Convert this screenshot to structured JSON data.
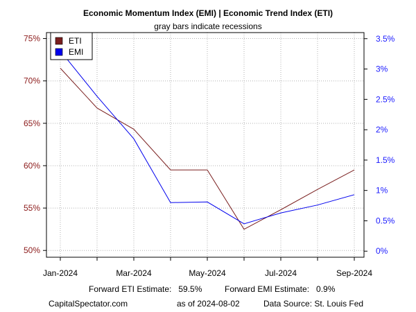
{
  "chart_data": {
    "type": "line",
    "title": "Economic Momentum Index (EMI) | Economic Trend Index (ETI)",
    "subtitle": "gray bars indicate recessions",
    "x_ticks": [
      "Jan-2024",
      "Mar-2024",
      "May-2024",
      "Jul-2024",
      "Sep-2024"
    ],
    "x_range": [
      0,
      8
    ],
    "grid": true,
    "legend_position": "top-left",
    "left_axis": {
      "ylim": [
        49.2,
        75.7
      ],
      "ticks": [
        50,
        55,
        60,
        65,
        70,
        75
      ],
      "tick_labels": [
        "50%",
        "55%",
        "60%",
        "65%",
        "70%",
        "75%"
      ],
      "color": "#8b1a1a"
    },
    "right_axis": {
      "ylim": [
        -0.1,
        3.6
      ],
      "ticks": [
        0,
        0.5,
        1,
        1.5,
        2,
        2.5,
        3,
        3.5
      ],
      "tick_labels": [
        "0%",
        "0.5%",
        "1%",
        "1.5%",
        "2%",
        "2.5%",
        "3%",
        "3.5%"
      ],
      "color": "#1a1aff"
    },
    "series": [
      {
        "name": "ETI",
        "axis": "left",
        "color": "#7a1f1f",
        "x": [
          0,
          1,
          2,
          3,
          4,
          5,
          6,
          7,
          8
        ],
        "values": [
          71.5,
          66.8,
          64.3,
          59.5,
          59.5,
          52.5,
          54.8,
          57.2,
          59.5
        ]
      },
      {
        "name": "EMI",
        "axis": "right",
        "color": "#0000ee",
        "x": [
          0,
          1,
          2,
          3,
          4,
          5,
          6,
          7,
          8
        ],
        "values": [
          3.3,
          2.55,
          1.85,
          0.8,
          0.81,
          0.45,
          0.63,
          0.76,
          0.93
        ]
      }
    ],
    "footer": {
      "forward_eti": "Forward ETI Estimate:   59.5%",
      "forward_emi": "Forward EMI Estimate:   0.9%",
      "source_site": "CapitalSpectator.com",
      "as_of": "as of 2024-08-02",
      "data_source": "Data Source: St. Louis Fed"
    }
  }
}
